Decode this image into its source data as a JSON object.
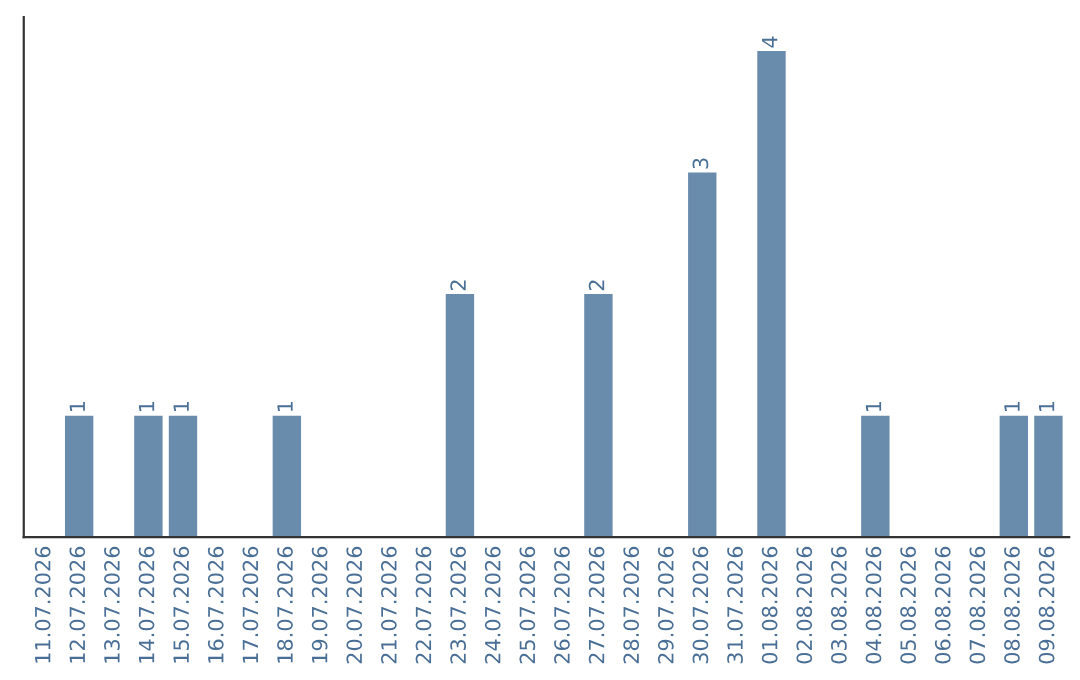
{
  "chart_data": {
    "type": "bar",
    "categories": [
      "11.07.2026",
      "12.07.2026",
      "13.07.2026",
      "14.07.2026",
      "15.07.2026",
      "16.07.2026",
      "17.07.2026",
      "18.07.2026",
      "19.07.2026",
      "20.07.2026",
      "21.07.2026",
      "22.07.2026",
      "23.07.2026",
      "24.07.2026",
      "25.07.2026",
      "26.07.2026",
      "27.07.2026",
      "28.07.2026",
      "29.07.2026",
      "30.07.2026",
      "31.07.2026",
      "01.08.2026",
      "02.08.2026",
      "03.08.2026",
      "04.08.2026",
      "05.08.2026",
      "06.08.2026",
      "07.08.2026",
      "08.08.2026",
      "09.08.2026"
    ],
    "values": [
      0,
      1,
      0,
      1,
      1,
      0,
      0,
      1,
      0,
      0,
      0,
      0,
      2,
      0,
      0,
      0,
      2,
      0,
      0,
      3,
      0,
      4,
      0,
      0,
      1,
      0,
      0,
      0,
      1,
      1
    ],
    "value_labels": [
      null,
      "1",
      null,
      "1",
      "1",
      null,
      null,
      "1",
      null,
      null,
      null,
      null,
      "2",
      null,
      null,
      null,
      "2",
      null,
      null,
      "3",
      null,
      "4",
      null,
      null,
      "1",
      null,
      null,
      null,
      "1",
      "1"
    ],
    "color": "#6a8cac",
    "tick_labels": "x"
  }
}
